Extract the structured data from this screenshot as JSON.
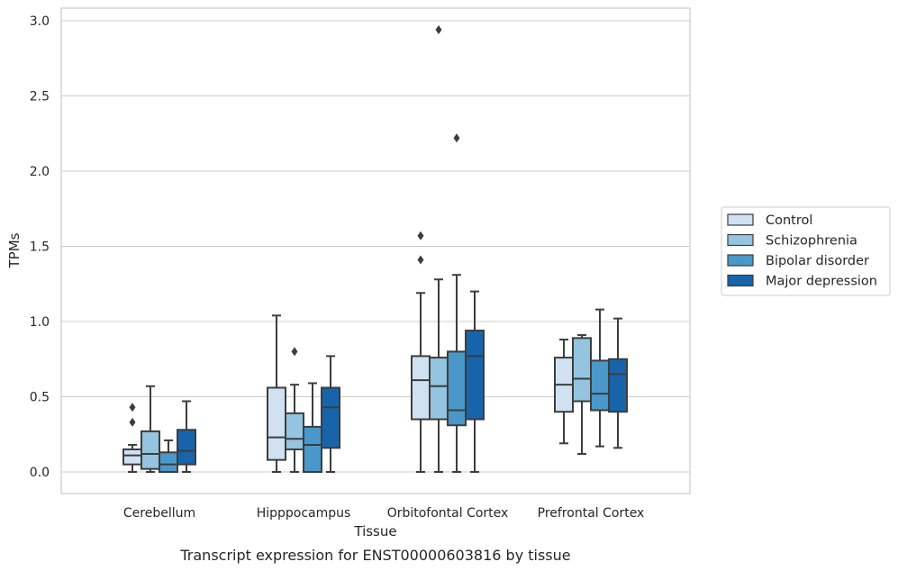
{
  "caption": "Transcript expression for ENST00000603816 by tissue",
  "chart_data": {
    "type": "box",
    "xlabel": "Tissue",
    "ylabel": "TPMs",
    "ylim": [
      -0.14,
      3.08
    ],
    "yticks": [
      0.0,
      0.5,
      1.0,
      1.5,
      2.0,
      2.5,
      3.0
    ],
    "ytick_labels": [
      "0.0",
      "0.5",
      "1.0",
      "1.5",
      "2.0",
      "2.5",
      "3.0"
    ],
    "grid": true,
    "legend_position": "right",
    "categories": [
      "Cerebellum",
      "Hipppocampus",
      "Orbitofontal Cortex",
      "Prefrontal Cortex"
    ],
    "series": [
      {
        "name": "Control",
        "color": "#d0e1f2",
        "boxes": [
          {
            "whislo": 0.0,
            "q1": 0.05,
            "med": 0.11,
            "q3": 0.15,
            "whishi": 0.18,
            "fliers": [
              0.33,
              0.43
            ]
          },
          {
            "whislo": 0.0,
            "q1": 0.08,
            "med": 0.23,
            "q3": 0.56,
            "whishi": 1.04,
            "fliers": []
          },
          {
            "whislo": 0.0,
            "q1": 0.35,
            "med": 0.61,
            "q3": 0.77,
            "whishi": 1.19,
            "fliers": [
              1.41,
              1.57
            ]
          },
          {
            "whislo": 0.19,
            "q1": 0.4,
            "med": 0.58,
            "q3": 0.76,
            "whishi": 0.88,
            "fliers": []
          }
        ]
      },
      {
        "name": "Schizophrenia",
        "color": "#94c4df",
        "boxes": [
          {
            "whislo": 0.0,
            "q1": 0.02,
            "med": 0.12,
            "q3": 0.27,
            "whishi": 0.57,
            "fliers": []
          },
          {
            "whislo": 0.0,
            "q1": 0.15,
            "med": 0.22,
            "q3": 0.39,
            "whishi": 0.58,
            "fliers": [
              0.8
            ]
          },
          {
            "whislo": 0.0,
            "q1": 0.35,
            "med": 0.57,
            "q3": 0.76,
            "whishi": 1.28,
            "fliers": [
              2.94
            ]
          },
          {
            "whislo": 0.12,
            "q1": 0.47,
            "med": 0.62,
            "q3": 0.89,
            "whishi": 0.91,
            "fliers": []
          }
        ]
      },
      {
        "name": "Bipolar disorder",
        "color": "#4a98c9",
        "boxes": [
          {
            "whislo": 0.0,
            "q1": 0.0,
            "med": 0.05,
            "q3": 0.13,
            "whishi": 0.21,
            "fliers": []
          },
          {
            "whislo": 0.0,
            "q1": 0.0,
            "med": 0.18,
            "q3": 0.3,
            "whishi": 0.59,
            "fliers": []
          },
          {
            "whislo": 0.0,
            "q1": 0.31,
            "med": 0.41,
            "q3": 0.8,
            "whishi": 1.31,
            "fliers": [
              2.22
            ]
          },
          {
            "whislo": 0.17,
            "q1": 0.41,
            "med": 0.52,
            "q3": 0.74,
            "whishi": 1.08,
            "fliers": []
          }
        ]
      },
      {
        "name": "Major depression",
        "color": "#1764ab",
        "boxes": [
          {
            "whislo": 0.0,
            "q1": 0.05,
            "med": 0.14,
            "q3": 0.28,
            "whishi": 0.47,
            "fliers": []
          },
          {
            "whislo": 0.0,
            "q1": 0.16,
            "med": 0.43,
            "q3": 0.56,
            "whishi": 0.77,
            "fliers": []
          },
          {
            "whislo": 0.0,
            "q1": 0.35,
            "med": 0.77,
            "q3": 0.94,
            "whishi": 1.2,
            "fliers": []
          },
          {
            "whislo": 0.16,
            "q1": 0.4,
            "med": 0.65,
            "q3": 0.75,
            "whishi": 1.02,
            "fliers": []
          }
        ]
      }
    ]
  }
}
